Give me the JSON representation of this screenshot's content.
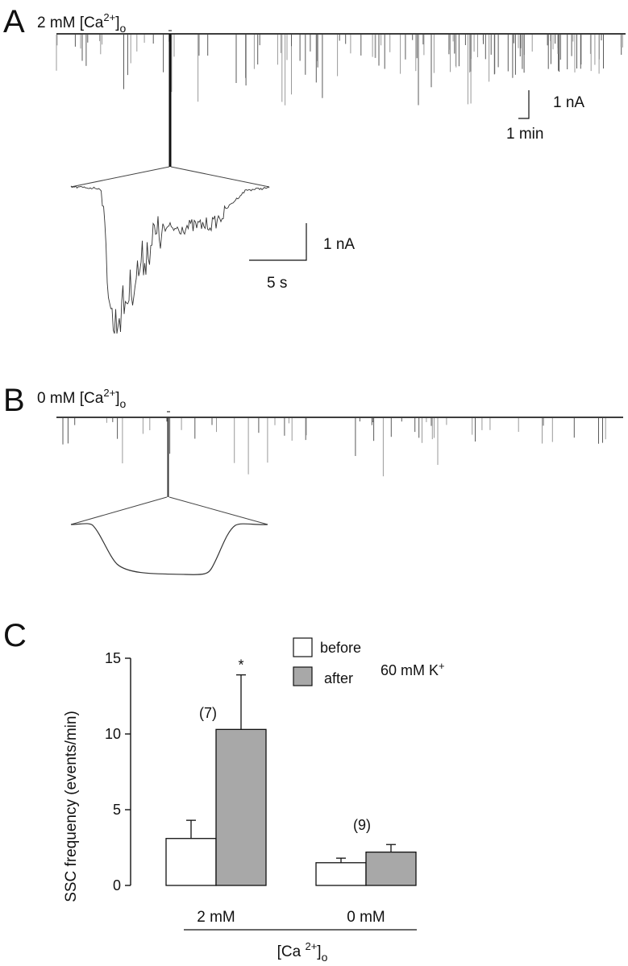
{
  "panels": {
    "a": {
      "letter": "A",
      "condition_main": "2 mM [Ca",
      "condition_sup": "2+",
      "condition_close": "]",
      "condition_sub": "o",
      "scale_current": "1 nA",
      "scale_time": "1 min",
      "inset_scale_current": "1 nA",
      "inset_scale_time": "5 s"
    },
    "b": {
      "letter": "B",
      "condition_main": "0 mM [Ca",
      "condition_sup": "2+",
      "condition_close": "]",
      "condition_sub": "o"
    },
    "c": {
      "letter": "C"
    }
  },
  "chart_data": {
    "type": "bar",
    "categories": [
      "2 mM",
      "0 mM"
    ],
    "series": [
      {
        "name": "before",
        "values": [
          3.1,
          1.5
        ],
        "errors": [
          1.2,
          0.3
        ],
        "color": "#ffffff"
      },
      {
        "name": "after",
        "values": [
          10.3,
          2.2
        ],
        "errors": [
          3.6,
          0.5
        ],
        "color": "#a8a8a8"
      }
    ],
    "n_labels": [
      "(7)",
      "(9)"
    ],
    "significance": [
      "*",
      ""
    ],
    "ylabel": "SSC frequency (events/min)",
    "ylim": [
      0,
      15
    ],
    "yticks": [
      0,
      5,
      10,
      15
    ],
    "xlabel_main": "[Ca ",
    "xlabel_sup": "2+",
    "xlabel_close": "]",
    "xlabel_sub": "o",
    "legend_note": "60 mM K",
    "legend_note_sup": "+",
    "legend_position": "top-right"
  }
}
